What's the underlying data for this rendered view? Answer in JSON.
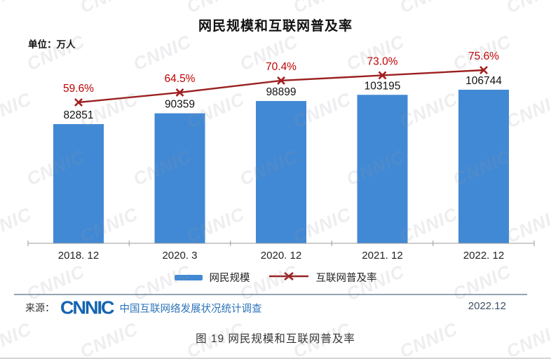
{
  "page": {
    "title": "网民规模和互联网普及率",
    "unit_label": "单位：万人",
    "caption": "图 19  网民规模和互联网普及率",
    "watermark_text": "CNNIC"
  },
  "chart_data": {
    "type": "bar",
    "subtype": "bar+line combo",
    "categories": [
      "2018.12",
      "2020.3",
      "2020.12",
      "2021.12",
      "2022.12"
    ],
    "tick_labels": [
      "2018. 12",
      "2020. 3",
      "2020. 12",
      "2021. 12",
      "2022. 12"
    ],
    "series": [
      {
        "name": "网民规模",
        "type": "bar",
        "unit": "万人",
        "color": "#4189d4",
        "values": [
          82851,
          90359,
          98899,
          103195,
          106744
        ],
        "labels": [
          "82851",
          "90359",
          "98899",
          "103195",
          "106744"
        ]
      },
      {
        "name": "互联网普及率",
        "type": "line",
        "unit": "%",
        "color": "#9c2020",
        "marker": "x",
        "values": [
          59.6,
          64.5,
          70.4,
          73.0,
          75.6
        ],
        "labels": [
          "59.6%",
          "64.5%",
          "70.4%",
          "73.0%",
          "75.6%"
        ]
      }
    ],
    "title": "网民规模和互联网普及率",
    "xlabel": "",
    "ylabel": "单位：万人",
    "grid": false,
    "legend_position": "bottom",
    "bar_label_color": "#111111",
    "line_label_color": "#c00000",
    "axis_color": "#9b9b9b"
  },
  "legend": {
    "bar_label": "网民规模",
    "line_label": "互联网普及率"
  },
  "footer": {
    "source_prefix": "来源：",
    "source_logo": "CNNIC",
    "source_text": "中国互联网络发展状况统计调查",
    "date": "2022.12"
  }
}
